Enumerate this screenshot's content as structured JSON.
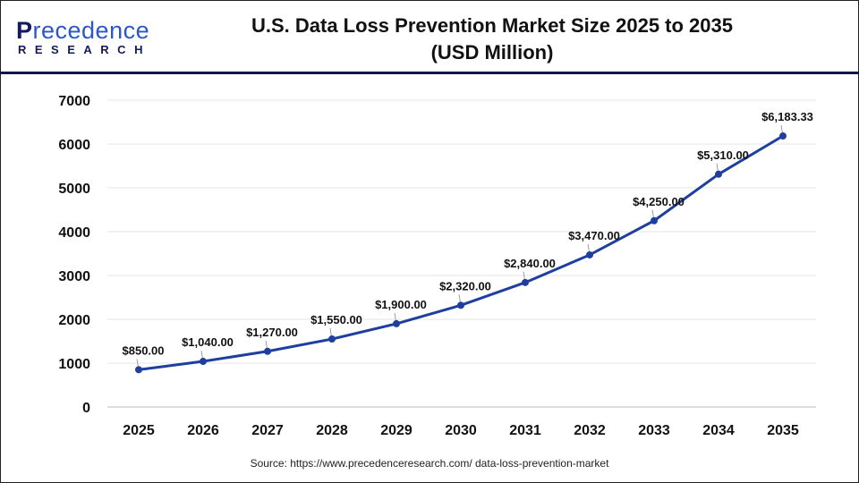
{
  "logo": {
    "main": "Precedence",
    "sub": "RESEARCH"
  },
  "title_line1": "U.S. Data Loss Prevention Market Size 2025 to 2035",
  "title_line2": "(USD Million)",
  "source": "Source: https://www.precedenceresearch.com/ data-loss-prevention-market",
  "chart_data": {
    "type": "line",
    "title": "U.S. Data Loss Prevention Market Size 2025 to 2035 (USD Million)",
    "categories": [
      "2025",
      "2026",
      "2027",
      "2028",
      "2029",
      "2030",
      "2031",
      "2032",
      "2033",
      "2034",
      "2035"
    ],
    "values": [
      850,
      1040,
      1270,
      1550,
      1900,
      2320,
      2840,
      3470,
      4250,
      5310,
      6183.33
    ],
    "data_labels": [
      "$850.00",
      "$1,040.00",
      "$1,270.00",
      "$1,550.00",
      "$1,900.00",
      "$2,320.00",
      "$2,840.00",
      "$3,470.00",
      "$4,250.00",
      "$5,310.00",
      "$6,183.33"
    ],
    "ylim": [
      0,
      7000
    ],
    "yticks": [
      0,
      1000,
      2000,
      3000,
      4000,
      5000,
      6000,
      7000
    ],
    "grid": true,
    "legend": "none",
    "color": "#1f3fa0"
  }
}
